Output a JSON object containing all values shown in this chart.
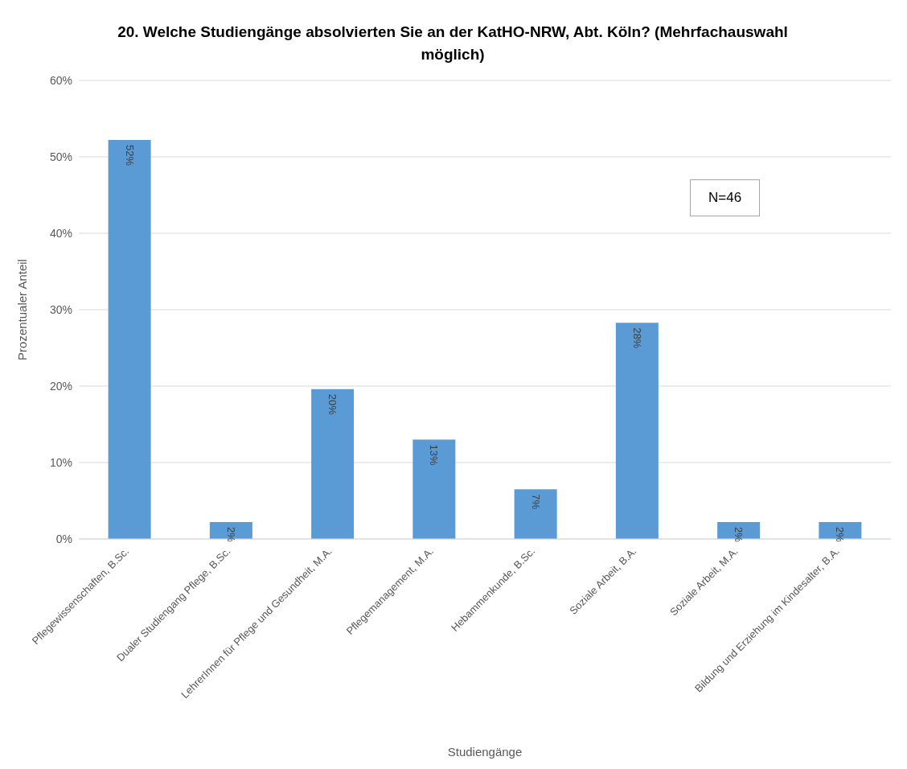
{
  "chart_data": {
    "type": "bar",
    "title": "20. Welche Studiengänge absolvierten Sie an der KatHO-NRW, Abt. Köln? (Mehrfachauswahl möglich)",
    "xlabel": "Studiengänge",
    "ylabel": "Prozentualer Anteil",
    "categories": [
      "Pflegewissenschaften, B.Sc.",
      "Dualer Studiengang Pflege, B.Sc.",
      "LehrerInnen für Pflege und Gesundheit, M.A.",
      "Pflegemanagement, M.A.",
      "Hebammenkunde, B.Sc.",
      "Soziale Arbeit, B.A.",
      "Soziale Arbeit, M.A.",
      "Bildung und Erziehung im Kindesalter, B.A."
    ],
    "values": [
      52.2,
      2.2,
      19.6,
      13.0,
      6.5,
      28.3,
      2.2,
      2.2
    ],
    "value_labels": [
      "52%",
      "2%",
      "20%",
      "13%",
      "7%",
      "28%",
      "2%",
      "2%"
    ],
    "color": "#5b9bd5",
    "ylim": [
      0,
      60
    ],
    "yticks": [
      {
        "value": 0,
        "label": "0%"
      },
      {
        "value": 10,
        "label": "10%"
      },
      {
        "value": 20,
        "label": "20%"
      },
      {
        "value": 30,
        "label": "30%"
      },
      {
        "value": 40,
        "label": "40%"
      },
      {
        "value": 50,
        "label": "50%"
      },
      {
        "value": 60,
        "label": "60%"
      }
    ],
    "grid": "y",
    "annotations": [
      "N=46"
    ]
  }
}
